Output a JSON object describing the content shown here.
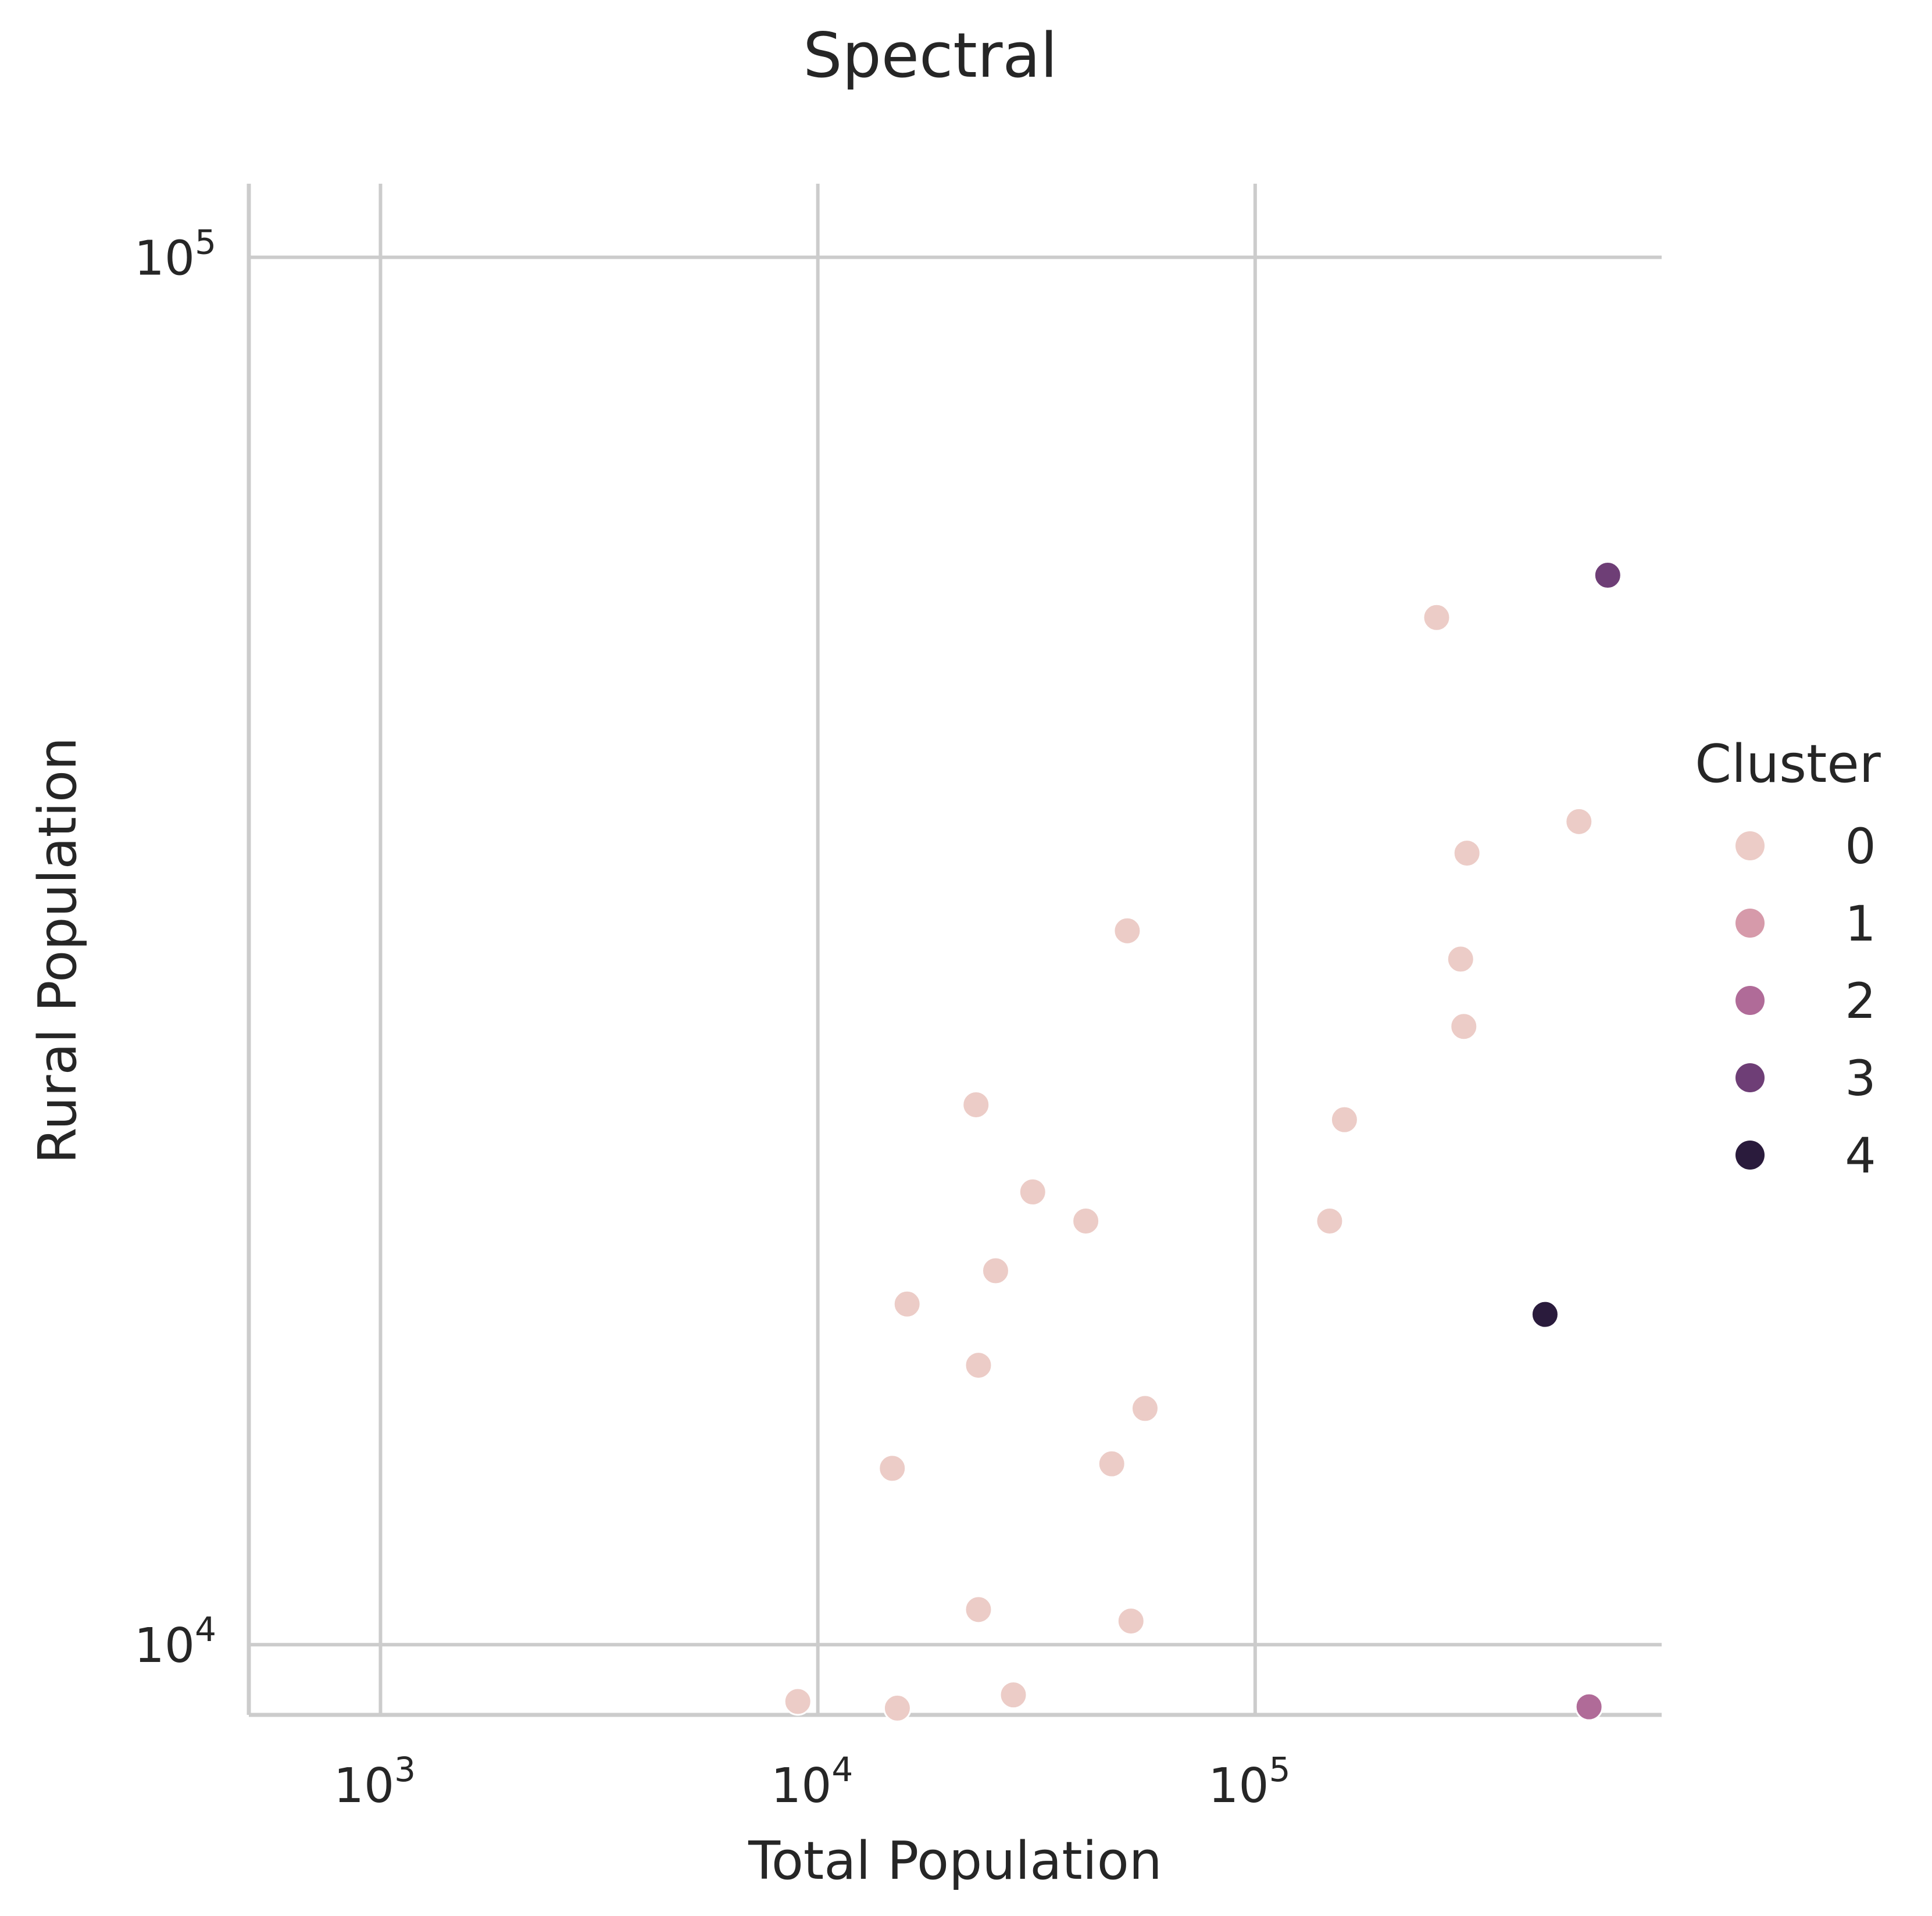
{
  "chart_data": {
    "type": "scatter",
    "title": "Spectral",
    "xlabel": "Total Population",
    "ylabel": "Rural Population",
    "xscale": "log",
    "yscale": "log",
    "xlim": [
      500,
      850000
    ],
    "ylim": [
      8900,
      113000
    ],
    "x_ticks": [
      {
        "value": 1000,
        "base": "10",
        "exp": "3"
      },
      {
        "value": 10000,
        "base": "10",
        "exp": "4"
      },
      {
        "value": 100000,
        "base": "10",
        "exp": "5"
      }
    ],
    "y_ticks": [
      {
        "value": 10000,
        "base": "10",
        "exp": "4"
      },
      {
        "value": 100000,
        "base": "10",
        "exp": "5"
      }
    ],
    "grid": true,
    "legend": {
      "title": "Cluster",
      "placement": "right",
      "entries": [
        {
          "label": "0",
          "color": "#ecccc7"
        },
        {
          "label": "1",
          "color": "#d69aaa"
        },
        {
          "label": "2",
          "color": "#b06b98"
        },
        {
          "label": "3",
          "color": "#6e3e76"
        },
        {
          "label": "4",
          "color": "#2a1b3c"
        }
      ]
    },
    "series": [
      {
        "cluster": 0,
        "color": "#ecccc7",
        "points": [
          {
            "x": 260000,
            "y": 55000
          },
          {
            "x": 550000,
            "y": 39200
          },
          {
            "x": 305000,
            "y": 37200
          },
          {
            "x": 51000,
            "y": 32700
          },
          {
            "x": 295000,
            "y": 31200
          },
          {
            "x": 300000,
            "y": 27900
          },
          {
            "x": 23000,
            "y": 24500
          },
          {
            "x": 160000,
            "y": 23900
          },
          {
            "x": 31000,
            "y": 21200
          },
          {
            "x": 41000,
            "y": 20200
          },
          {
            "x": 148000,
            "y": 20200
          },
          {
            "x": 25500,
            "y": 18600
          },
          {
            "x": 16000,
            "y": 17600
          },
          {
            "x": 23300,
            "y": 15900
          },
          {
            "x": 56000,
            "y": 14800
          },
          {
            "x": 47000,
            "y": 13500
          },
          {
            "x": 14800,
            "y": 13400
          },
          {
            "x": 23300,
            "y": 10600
          },
          {
            "x": 52000,
            "y": 10400
          },
          {
            "x": 9000,
            "y": 9100
          },
          {
            "x": 15200,
            "y": 9000
          },
          {
            "x": 28000,
            "y": 9200
          }
        ]
      },
      {
        "cluster": 2,
        "color": "#b06b98",
        "points": [
          {
            "x": 580000,
            "y": 9020
          }
        ]
      },
      {
        "cluster": 3,
        "color": "#6e3e76",
        "points": [
          {
            "x": 640000,
            "y": 59000
          }
        ]
      },
      {
        "cluster": 4,
        "color": "#2a1b3c",
        "points": [
          {
            "x": 460000,
            "y": 17300
          }
        ]
      }
    ]
  }
}
